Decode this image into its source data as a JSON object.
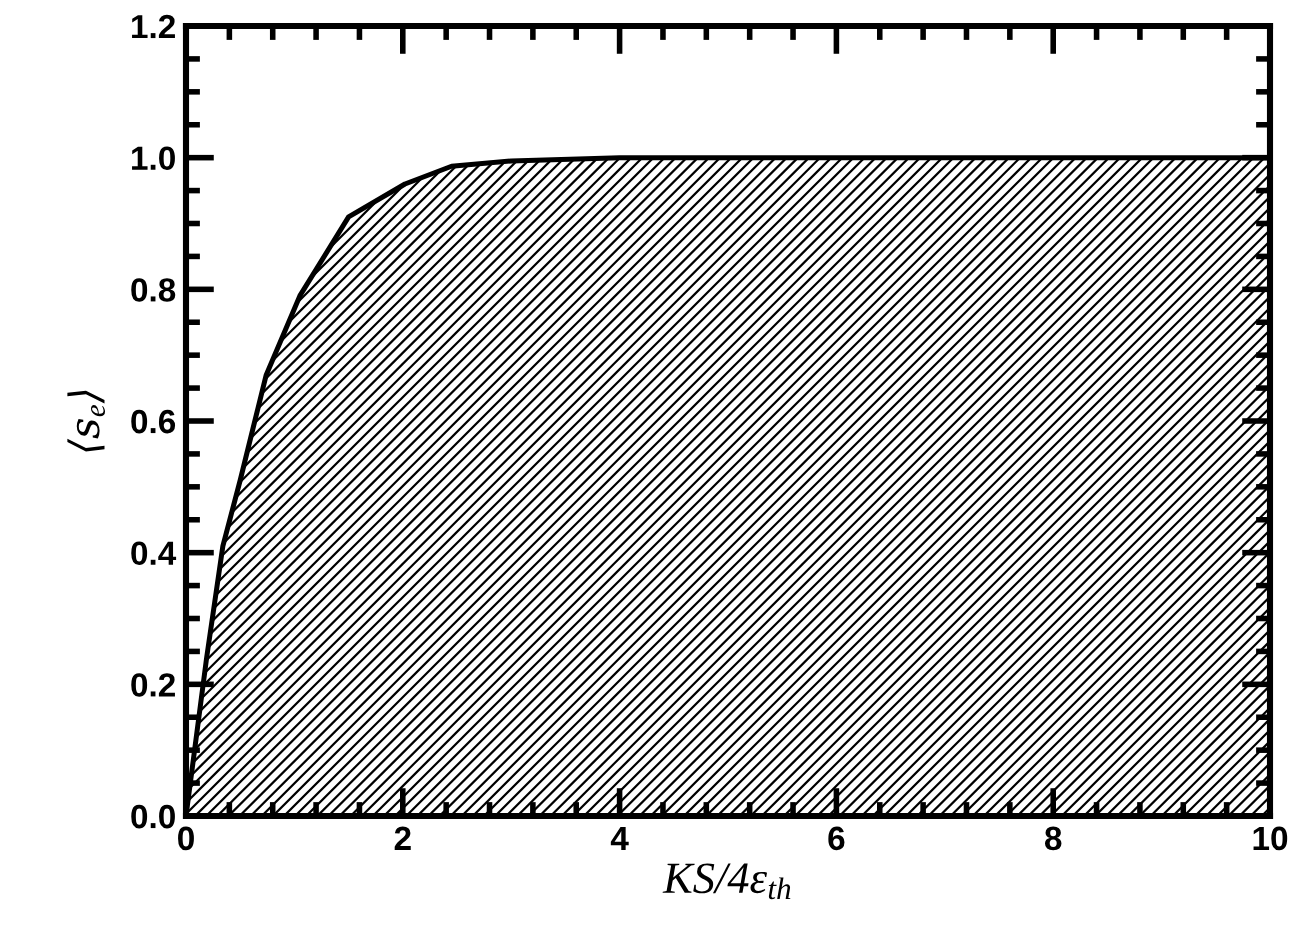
{
  "chart_data": {
    "type": "area",
    "xlabel": "KS/4ε$_{th}$",
    "ylabel": "⟨s$_{e}$⟩",
    "x": [
      0,
      0.19,
      0.34,
      0.5,
      0.74,
      1.05,
      1.5,
      2.02,
      2.45,
      3,
      4,
      10
    ],
    "series": [
      {
        "color": "#000000",
        "values": [
          0,
          0.24,
          0.41,
          0.51,
          0.67,
          0.79,
          0.91,
          0.96,
          0.987,
          0.995,
          1.0,
          1.0
        ]
      }
    ],
    "xlim": [
      0,
      10
    ],
    "xticks": [
      0,
      2,
      4,
      6,
      8,
      10
    ],
    "ylim": [
      0,
      1.2
    ],
    "yticks": [
      {
        "value": 0,
        "label": "0.0"
      },
      0.2,
      0.4,
      0.6,
      0.8,
      {
        "value": 1,
        "label": "1.0"
      },
      1.2
    ],
    "grid": false,
    "legend": false
  }
}
